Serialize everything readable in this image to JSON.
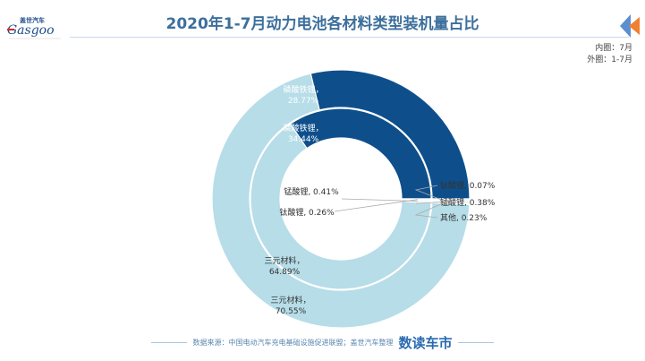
{
  "header": {
    "title": "2020年1-7月动力电池各材料类型装机量占比",
    "logo_text": "Gasgoo",
    "logo_cn": "盖世汽车"
  },
  "legend_note": {
    "inner": "内圈：7月",
    "outer": "外圈：1-7月"
  },
  "chart_data": {
    "type": "pie",
    "subtype": "nested-donut",
    "title": "2020年1-7月动力电池各材料类型装机量占比",
    "colors": {
      "磷酸铁锂": "#0e4f8b",
      "三元材料": "#b6dde8",
      "small": "#e8f3f7"
    },
    "series": [
      {
        "name": "外圈：1-7月",
        "ring": "outer",
        "slices": [
          {
            "label": "磷酸铁锂",
            "value": 28.77,
            "text": "磷酸铁锂，",
            "pct": "28.77%"
          },
          {
            "label": "三元材料",
            "value": 70.55,
            "text": "三元材料，",
            "pct": "70.55%"
          },
          {
            "label": "钛酸锂",
            "value": 0.07,
            "text": "钛酸锂, 0.07%"
          },
          {
            "label": "锰酸锂",
            "value": 0.38,
            "text": "锰酸锂, 0.38%"
          },
          {
            "label": "其他",
            "value": 0.23,
            "text": "其他, 0.23%"
          }
        ]
      },
      {
        "name": "内圈：7月",
        "ring": "inner",
        "slices": [
          {
            "label": "磷酸铁锂",
            "value": 34.44,
            "text": "磷酸铁锂，",
            "pct": "34.44%"
          },
          {
            "label": "三元材料",
            "value": 64.89,
            "text": "三元材料，",
            "pct": "64.89%"
          },
          {
            "label": "锰酸锂",
            "value": 0.41,
            "text": "锰酸锂, 0.41%"
          },
          {
            "label": "钛酸锂",
            "value": 0.26,
            "text": "钛酸锂, 0.26%"
          }
        ]
      }
    ]
  },
  "footer": {
    "source": "数据来源：中国电动汽车充电基础设施促进联盟；盖世汽车整理",
    "brand": "数读车市"
  }
}
